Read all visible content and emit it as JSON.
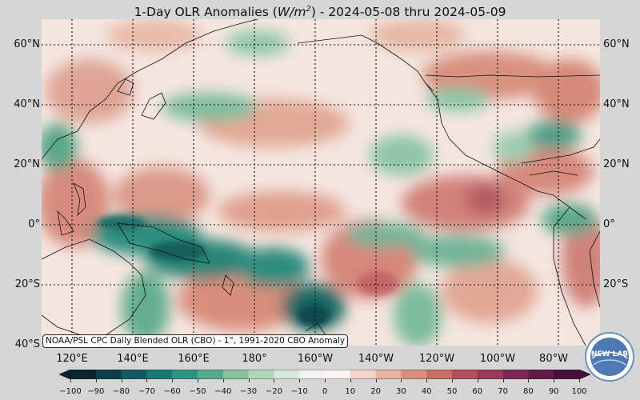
{
  "title": {
    "prefix": "1-Day OLR Anomalies (",
    "unit_base": "W/m",
    "unit_exp": "2",
    "suffix": ") - 2024-05-08 thru 2024-05-09"
  },
  "map": {
    "lat_labels": [
      "60°N",
      "40°N",
      "20°N",
      "0°",
      "20°S",
      "40°S"
    ],
    "lon_labels": [
      "120°E",
      "140°E",
      "160°E",
      "180°",
      "160°W",
      "140°W",
      "120°W",
      "100°W",
      "80°W"
    ],
    "source_note": "NOAA/PSL CPC Daily Blended OLR (CBO) - 1°, 1991-2020 CBO Anomaly",
    "extent": {
      "lon_min": 110,
      "lon_max": 295,
      "lat_min": -40,
      "lat_max": 68
    }
  },
  "colorbar": {
    "ticks": [
      "−100",
      "−90",
      "−80",
      "−70",
      "−60",
      "−50",
      "−40",
      "−30",
      "−20",
      "−10",
      "0",
      "10",
      "20",
      "30",
      "40",
      "50",
      "60",
      "70",
      "80",
      "90",
      "100"
    ],
    "range": [
      -100,
      100
    ],
    "colors": [
      "#0b2433",
      "#0f3d4c",
      "#125a60",
      "#187a72",
      "#2f9583",
      "#58aa8f",
      "#86c0a0",
      "#b2d6bd",
      "#d7e8da",
      "#f2f2ee",
      "#fbf3ee",
      "#f3d6cb",
      "#e8b2a0",
      "#da8f7e",
      "#c86e65",
      "#b24f5a",
      "#9a3a5a",
      "#7f2758",
      "#621a4b",
      "#451039"
    ]
  },
  "logo": {
    "text": "NEW LAB"
  }
}
